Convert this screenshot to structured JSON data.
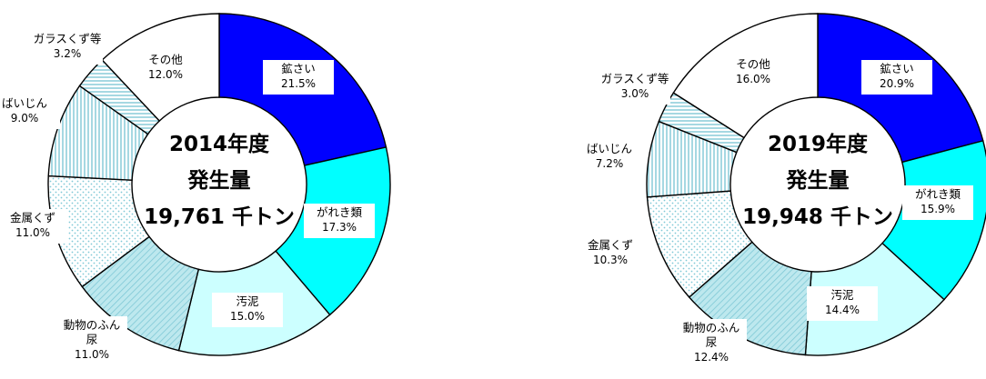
{
  "chart_data": [
    {
      "type": "pie",
      "center_text": [
        "2014年度",
        "発生量",
        "19,761 千トン"
      ],
      "slices": [
        {
          "name": "鉱さい",
          "pct_label": "21.5%",
          "value": 21.5,
          "color": "#0000ff"
        },
        {
          "name": "がれき類",
          "pct_label": "17.3%",
          "value": 17.3,
          "color": "#00ffff"
        },
        {
          "name": "汚泥",
          "pct_label": "15.0%",
          "value": 15.0,
          "color": "#ccffff"
        },
        {
          "name": "動物のふん尿",
          "name_lines": [
            "動物のふん",
            "尿"
          ],
          "pct_label": "11.0%",
          "value": 11.0,
          "color": "#bde8ee",
          "pattern": "diag"
        },
        {
          "name": "金属くず",
          "pct_label": "11.0%",
          "value": 11.0,
          "color": "#ffffff",
          "pattern": "dots"
        },
        {
          "name": "ばいじん",
          "pct_label": "9.0%",
          "value": 9.0,
          "color": "#ffffff",
          "pattern": "vert"
        },
        {
          "name": "ガラスくず等",
          "pct_label": "3.2%",
          "value": 3.2,
          "color": "#ffffff",
          "pattern": "horiz"
        },
        {
          "name": "その他",
          "pct_label": "12.0%",
          "value": 12.0,
          "color": "#ffffff"
        }
      ]
    },
    {
      "type": "pie",
      "center_text": [
        "2019年度",
        "発生量",
        "19,948 千トン"
      ],
      "slices": [
        {
          "name": "鉱さい",
          "pct_label": "20.9%",
          "value": 20.9,
          "color": "#0000ff"
        },
        {
          "name": "がれき類",
          "pct_label": "15.9%",
          "value": 15.9,
          "color": "#00ffff"
        },
        {
          "name": "汚泥",
          "pct_label": "14.4%",
          "value": 14.4,
          "color": "#ccffff"
        },
        {
          "name": "動物のふん尿",
          "name_lines": [
            "動物のふん",
            "尿"
          ],
          "pct_label": "12.4%",
          "value": 12.4,
          "color": "#bde8ee",
          "pattern": "diag"
        },
        {
          "name": "金属くず",
          "pct_label": "10.3%",
          "value": 10.3,
          "color": "#ffffff",
          "pattern": "dots"
        },
        {
          "name": "ばいじん",
          "pct_label": "7.2%",
          "value": 7.2,
          "color": "#ffffff",
          "pattern": "vert"
        },
        {
          "name": "ガラスくず等",
          "pct_label": "3.0%",
          "value": 3.0,
          "color": "#ffffff",
          "pattern": "horiz"
        },
        {
          "name": "その他",
          "pct_label": "16.0%",
          "value": 16.0,
          "color": "#ffffff"
        }
      ]
    }
  ]
}
